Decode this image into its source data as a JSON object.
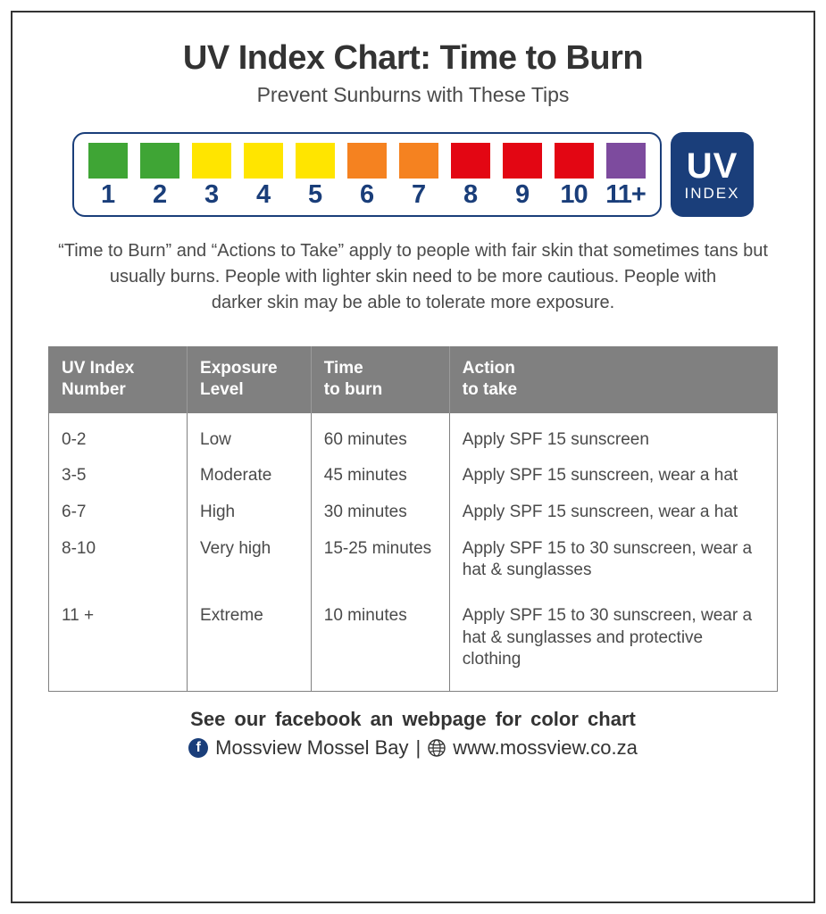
{
  "title": "UV Index Chart: Time to Burn",
  "subtitle": "Prevent Sunburns with These Tips",
  "colors": {
    "text_dark": "#333333",
    "text_body": "#4a4a4a",
    "table_header_bg": "#808080",
    "table_border": "#808080",
    "scale_border": "#1a3e7a",
    "scale_number": "#1a3e7a",
    "uv_badge_bg": "#1a3e7a",
    "fb_bg": "#1a3e7a"
  },
  "scale": {
    "items": [
      {
        "label": "1",
        "color": "#3fa535"
      },
      {
        "label": "2",
        "color": "#3fa535"
      },
      {
        "label": "3",
        "color": "#ffe500"
      },
      {
        "label": "4",
        "color": "#ffe500"
      },
      {
        "label": "5",
        "color": "#ffe500"
      },
      {
        "label": "6",
        "color": "#f58220"
      },
      {
        "label": "7",
        "color": "#f58220"
      },
      {
        "label": "8",
        "color": "#e30613"
      },
      {
        "label": "9",
        "color": "#e30613"
      },
      {
        "label": "10",
        "color": "#e30613"
      },
      {
        "label": "11+",
        "color": "#7d4b9e"
      }
    ],
    "badge_top": "UV",
    "badge_bottom": "INDEX"
  },
  "disclaimer": "“Time to Burn” and “Actions to Take” apply to people with fair skin that sometimes tans but usually burns. People with lighter skin need to be more cautious. People with\ndarker skin may be able to tolerate more exposure.",
  "table": {
    "columns": [
      "UV Index\nNumber",
      "Exposure\nLevel",
      "Time\nto burn",
      "Action\nto take"
    ],
    "col_widths": [
      "19%",
      "17%",
      "19%",
      "45%"
    ],
    "rows": [
      [
        "0-2",
        "Low",
        "60 minutes",
        "Apply SPF 15 sunscreen"
      ],
      [
        "3-5",
        "Moderate",
        "45 minutes",
        "Apply SPF 15 sunscreen, wear a hat"
      ],
      [
        "6-7",
        "High",
        "30 minutes",
        "Apply SPF 15 sunscreen, wear a hat"
      ],
      [
        "8-10",
        "Very high",
        "15-25 minutes",
        "Apply SPF 15 to 30 sunscreen, wear a hat & sunglasses"
      ],
      [
        "11 +",
        "Extreme",
        "10 minutes",
        "Apply SPF 15 to 30 sunscreen, wear a hat & sunglasses and protective clothing"
      ]
    ]
  },
  "footer": {
    "line1": "See our facebook an webpage for color chart",
    "fb_name": "Mossview Mossel Bay",
    "separator": "|",
    "url": "www.mossview.co.za"
  }
}
